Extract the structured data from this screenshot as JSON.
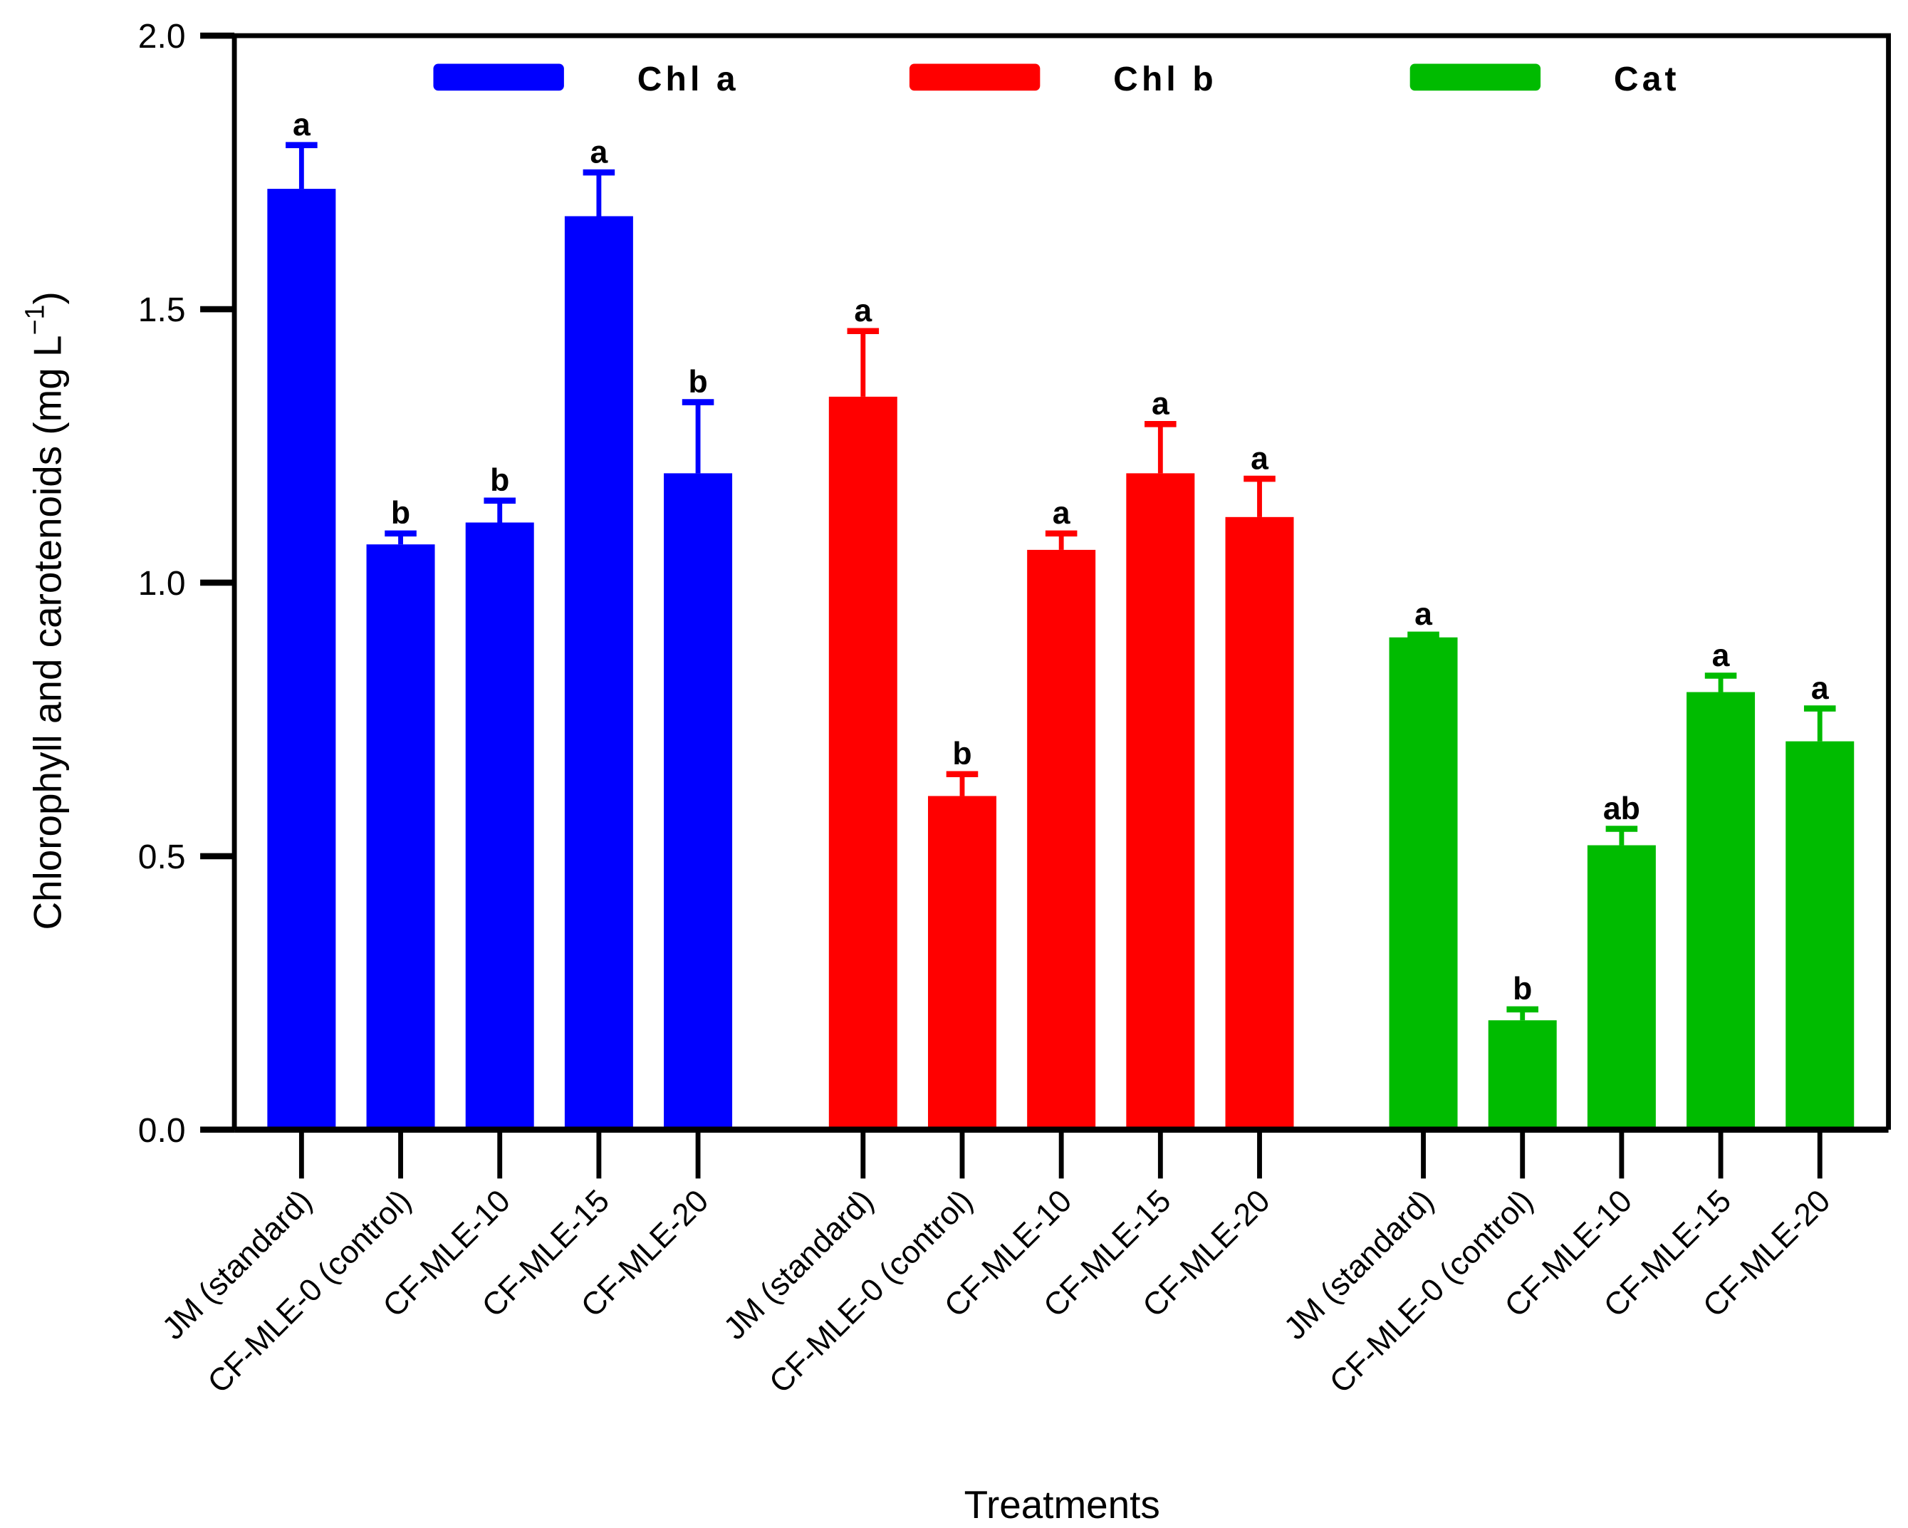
{
  "chart_data": {
    "type": "bar",
    "title": "",
    "xlabel": "Treatments",
    "ylabel": "Chlorophyll and carotenoids (mg L",
    "ylabel_superscript": "−1",
    "ylabel_close": ")",
    "ylim": [
      0,
      2.0
    ],
    "yticks": [
      "0.0",
      "0.5",
      "1.0",
      "1.5",
      "2.0"
    ],
    "grid": false,
    "legend_position": "top",
    "categories": [
      "JM (standard)",
      "CF-MLE-0 (control)",
      "CF-MLE-10",
      "CF-MLE-15",
      "CF-MLE-20"
    ],
    "series": [
      {
        "name": "Chl a",
        "color": "#0000ff",
        "values": [
          1.72,
          1.07,
          1.11,
          1.67,
          1.2
        ],
        "errors": [
          0.08,
          0.02,
          0.04,
          0.08,
          0.13
        ],
        "letters": [
          "a",
          "b",
          "b",
          "a",
          "b"
        ]
      },
      {
        "name": "Chl b",
        "color": "#ff0000",
        "values": [
          1.34,
          0.61,
          1.06,
          1.2,
          1.12
        ],
        "errors": [
          0.12,
          0.04,
          0.03,
          0.09,
          0.07
        ],
        "letters": [
          "a",
          "b",
          "a",
          "a",
          "a"
        ]
      },
      {
        "name": "Cat",
        "color": "#00bb00",
        "values": [
          0.9,
          0.2,
          0.52,
          0.8,
          0.71
        ],
        "errors": [
          0.005,
          0.02,
          0.03,
          0.03,
          0.06
        ],
        "letters": [
          "a",
          "b",
          "ab",
          "a",
          "a"
        ]
      }
    ]
  }
}
